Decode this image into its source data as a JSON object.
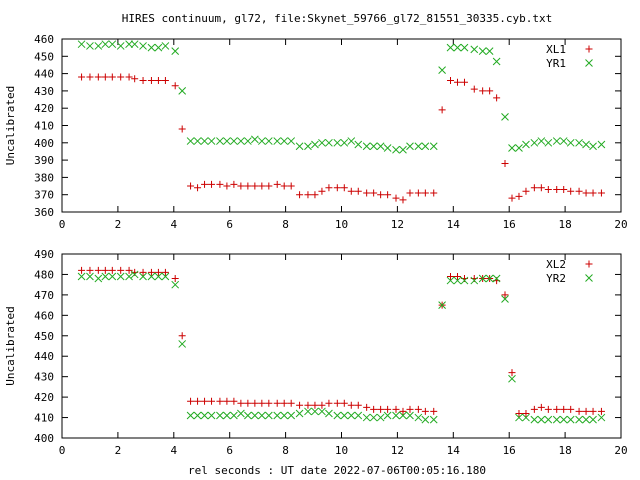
{
  "title": "HIRES continuum, gl72, file:Skynet_59766_gl72_81551_30335.cyb.txt",
  "xlabel": "rel seconds : UT date 2022-07-06T00:05:16.180",
  "colors": {
    "L": "#cc0000",
    "R": "#22aa22"
  },
  "chart_data": [
    {
      "type": "scatter",
      "ylabel": "Uncalibrated",
      "xlim": [
        0,
        20
      ],
      "ylim": [
        360,
        460
      ],
      "xticks": [
        0,
        2,
        4,
        6,
        8,
        10,
        12,
        14,
        16,
        18,
        20
      ],
      "yticks": [
        360,
        370,
        380,
        390,
        400,
        410,
        420,
        430,
        440,
        450,
        460
      ],
      "legend_position": "top-right",
      "series": [
        {
          "name": "XL1",
          "marker": "plus",
          "x": [
            0.7,
            1.0,
            1.3,
            1.55,
            1.8,
            2.1,
            2.4,
            2.6,
            2.9,
            3.2,
            3.45,
            3.7,
            4.05,
            4.3,
            4.6,
            4.85,
            5.1,
            5.35,
            5.65,
            5.9,
            6.15,
            6.4,
            6.65,
            6.9,
            7.15,
            7.4,
            7.7,
            7.95,
            8.2,
            8.5,
            8.8,
            9.05,
            9.3,
            9.55,
            9.85,
            10.1,
            10.35,
            10.6,
            10.9,
            11.15,
            11.4,
            11.65,
            11.95,
            12.2,
            12.45,
            12.75,
            13.0,
            13.3,
            13.6,
            13.9,
            14.15,
            14.4,
            14.75,
            15.05,
            15.3,
            15.55,
            15.85,
            16.1,
            16.35,
            16.6,
            16.9,
            17.15,
            17.4,
            17.7,
            17.95,
            18.2,
            18.5,
            18.75,
            19.0,
            19.3
          ],
          "y": [
            438,
            438,
            438,
            438,
            438,
            438,
            438,
            437,
            436,
            436,
            436,
            436,
            433,
            408,
            375,
            374,
            376,
            376,
            376,
            375,
            376,
            375,
            375,
            375,
            375,
            375,
            376,
            375,
            375,
            370,
            370,
            370,
            372,
            374,
            374,
            374,
            372,
            372,
            371,
            371,
            370,
            370,
            368,
            367,
            371,
            371,
            371,
            371,
            419,
            436,
            435,
            435,
            431,
            430,
            430,
            426,
            388,
            368,
            369,
            372,
            374,
            374,
            373,
            373,
            373,
            372,
            372,
            371,
            371,
            371
          ]
        },
        {
          "name": "YR1",
          "marker": "cross",
          "x": [
            0.7,
            1.0,
            1.3,
            1.55,
            1.8,
            2.1,
            2.4,
            2.6,
            2.9,
            3.2,
            3.45,
            3.7,
            4.05,
            4.3,
            4.6,
            4.85,
            5.1,
            5.35,
            5.65,
            5.9,
            6.15,
            6.4,
            6.65,
            6.9,
            7.15,
            7.4,
            7.7,
            7.95,
            8.2,
            8.5,
            8.8,
            9.05,
            9.3,
            9.55,
            9.85,
            10.1,
            10.35,
            10.6,
            10.9,
            11.15,
            11.4,
            11.65,
            11.95,
            12.2,
            12.45,
            12.75,
            13.0,
            13.3,
            13.6,
            13.9,
            14.15,
            14.4,
            14.75,
            15.05,
            15.3,
            15.55,
            15.85,
            16.1,
            16.35,
            16.6,
            16.9,
            17.15,
            17.4,
            17.7,
            17.95,
            18.2,
            18.5,
            18.75,
            19.0,
            19.3
          ],
          "y": [
            457,
            456,
            456,
            457,
            457,
            456,
            457,
            457,
            456,
            455,
            455,
            456,
            453,
            430,
            401,
            401,
            401,
            401,
            401,
            401,
            401,
            401,
            401,
            402,
            401,
            401,
            401,
            401,
            401,
            398,
            398,
            399,
            400,
            400,
            400,
            400,
            401,
            399,
            398,
            398,
            398,
            397,
            396,
            396,
            398,
            398,
            398,
            398,
            442,
            455,
            455,
            455,
            454,
            453,
            453,
            447,
            415,
            397,
            397,
            399,
            400,
            401,
            400,
            401,
            401,
            400,
            400,
            399,
            398,
            399
          ]
        }
      ]
    },
    {
      "type": "scatter",
      "ylabel": "Uncalibrated",
      "xlim": [
        0,
        20
      ],
      "ylim": [
        400,
        490
      ],
      "xticks": [
        0,
        2,
        4,
        6,
        8,
        10,
        12,
        14,
        16,
        18,
        20
      ],
      "yticks": [
        400,
        410,
        420,
        430,
        440,
        450,
        460,
        470,
        480,
        490
      ],
      "legend_position": "top-right",
      "series": [
        {
          "name": "XL2",
          "marker": "plus",
          "x": [
            0.7,
            1.0,
            1.3,
            1.55,
            1.8,
            2.1,
            2.4,
            2.6,
            2.9,
            3.2,
            3.45,
            3.7,
            4.05,
            4.3,
            4.6,
            4.85,
            5.1,
            5.35,
            5.65,
            5.9,
            6.15,
            6.4,
            6.65,
            6.9,
            7.15,
            7.4,
            7.7,
            7.95,
            8.2,
            8.5,
            8.8,
            9.05,
            9.3,
            9.55,
            9.85,
            10.1,
            10.35,
            10.6,
            10.9,
            11.15,
            11.4,
            11.65,
            11.95,
            12.2,
            12.45,
            12.75,
            13.0,
            13.3,
            13.6,
            13.9,
            14.15,
            14.4,
            14.75,
            15.05,
            15.3,
            15.55,
            15.85,
            16.1,
            16.35,
            16.6,
            16.9,
            17.15,
            17.4,
            17.7,
            17.95,
            18.2,
            18.5,
            18.75,
            19.0,
            19.3
          ],
          "y": [
            482,
            482,
            482,
            482,
            482,
            482,
            482,
            481,
            481,
            481,
            481,
            481,
            478,
            450,
            418,
            418,
            418,
            418,
            418,
            418,
            418,
            417,
            417,
            417,
            417,
            417,
            417,
            417,
            417,
            416,
            416,
            416,
            416,
            417,
            417,
            417,
            416,
            416,
            415,
            414,
            414,
            414,
            414,
            413,
            414,
            414,
            413,
            413,
            465,
            479,
            479,
            478,
            478,
            478,
            478,
            477,
            470,
            432,
            412,
            412,
            414,
            415,
            414,
            414,
            414,
            414,
            413,
            413,
            413,
            413
          ]
        },
        {
          "name": "YR2",
          "marker": "cross",
          "x": [
            0.7,
            1.0,
            1.3,
            1.55,
            1.8,
            2.1,
            2.4,
            2.6,
            2.9,
            3.2,
            3.45,
            3.7,
            4.05,
            4.3,
            4.6,
            4.85,
            5.1,
            5.35,
            5.65,
            5.9,
            6.15,
            6.4,
            6.65,
            6.9,
            7.15,
            7.4,
            7.7,
            7.95,
            8.2,
            8.5,
            8.8,
            9.05,
            9.3,
            9.55,
            9.85,
            10.1,
            10.35,
            10.6,
            10.9,
            11.15,
            11.4,
            11.65,
            11.95,
            12.2,
            12.45,
            12.75,
            13.0,
            13.3,
            13.6,
            13.9,
            14.15,
            14.4,
            14.75,
            15.05,
            15.3,
            15.55,
            15.85,
            16.1,
            16.35,
            16.6,
            16.9,
            17.15,
            17.4,
            17.7,
            17.95,
            18.2,
            18.5,
            18.75,
            19.0,
            19.3
          ],
          "y": [
            479,
            479,
            478,
            479,
            479,
            479,
            479,
            480,
            479,
            479,
            479,
            479,
            475,
            446,
            411,
            411,
            411,
            411,
            411,
            411,
            411,
            412,
            411,
            411,
            411,
            411,
            411,
            411,
            411,
            412,
            413,
            413,
            413,
            412,
            411,
            411,
            411,
            411,
            410,
            410,
            410,
            411,
            411,
            411,
            411,
            410,
            409,
            409,
            465,
            477,
            477,
            477,
            477,
            478,
            478,
            478,
            468,
            429,
            410,
            410,
            409,
            409,
            409,
            409,
            409,
            409,
            409,
            409,
            409,
            410
          ]
        }
      ]
    }
  ]
}
